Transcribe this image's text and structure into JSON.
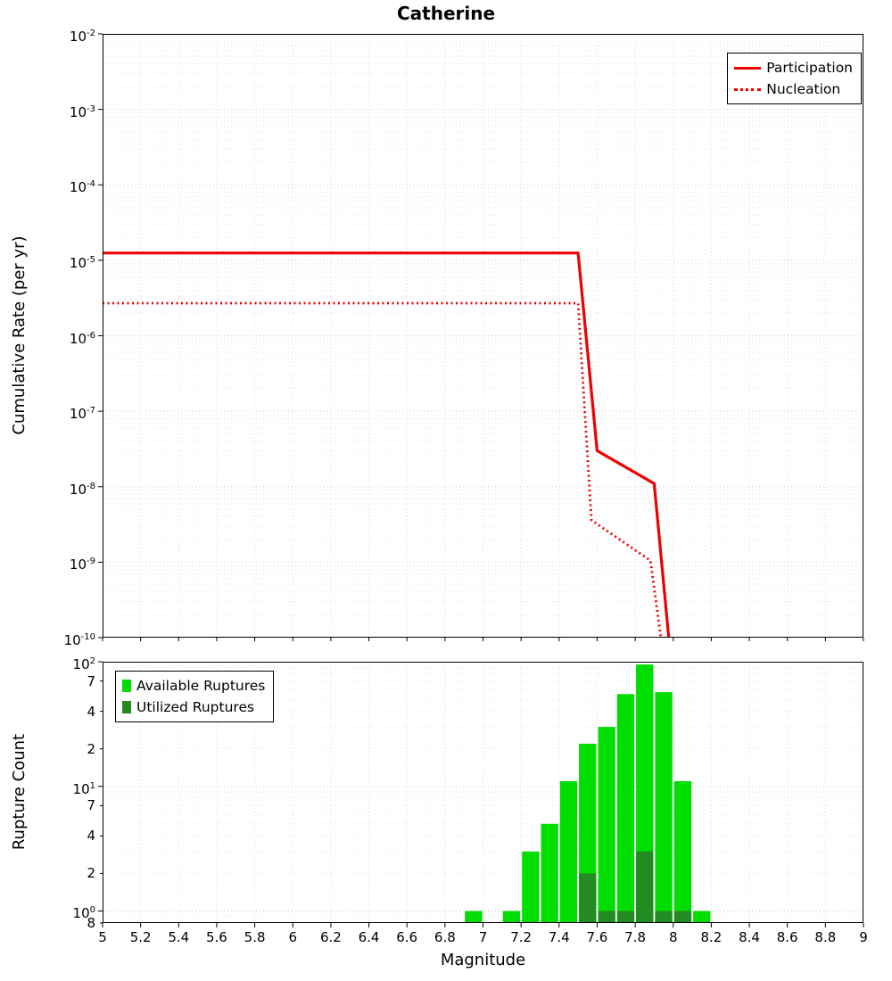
{
  "chart_data": [
    {
      "type": "line",
      "title": "Catherine",
      "ylabel": "Cumulative Rate (per yr)",
      "xlabel": "",
      "xlim": [
        5,
        9
      ],
      "ylim": [
        1e-10,
        0.01
      ],
      "y_scale": "log",
      "grid": true,
      "legend_position": "top-right",
      "y_ticks": [
        {
          "v": 0.01,
          "label": "10^-2",
          "major": true
        },
        {
          "v": 0.001,
          "label": "10^-3",
          "major": true
        },
        {
          "v": 0.0001,
          "label": "10^-4",
          "major": true
        },
        {
          "v": 1e-05,
          "label": "10^-5",
          "major": true
        },
        {
          "v": 1e-06,
          "label": "10^-6",
          "major": true
        },
        {
          "v": 1e-07,
          "label": "10^-7",
          "major": true
        },
        {
          "v": 1e-08,
          "label": "10^-8",
          "major": true
        },
        {
          "v": 1e-09,
          "label": "10^-9",
          "major": true
        },
        {
          "v": 1e-10,
          "label": "10^-10",
          "major": true
        }
      ],
      "series": [
        {
          "name": "Participation",
          "color": "#ee0000",
          "line_style": "solid",
          "line_width": 3.2,
          "x": [
            5.0,
            7.5,
            7.6,
            7.9,
            7.98
          ],
          "y": [
            1.25e-05,
            1.25e-05,
            3e-08,
            1.1e-08,
            8e-11
          ]
        },
        {
          "name": "Nucleation",
          "color": "#ee0000",
          "line_style": "dotted",
          "line_width": 2.8,
          "x": [
            5.0,
            7.5,
            7.57,
            7.88,
            7.94
          ],
          "y": [
            2.7e-06,
            2.7e-06,
            3.6e-09,
            1.05e-09,
            8e-11
          ]
        }
      ]
    },
    {
      "type": "bar",
      "title": "",
      "ylabel": "Rupture Count",
      "xlabel": "Magnitude",
      "xlim": [
        5,
        9
      ],
      "ylim": [
        0.8,
        100
      ],
      "y_scale": "log",
      "grid": true,
      "bar_width": 0.1,
      "legend_position": "top-left",
      "x_ticks": [
        {
          "v": 5,
          "label": "5"
        },
        {
          "v": 5.2,
          "label": "5.2"
        },
        {
          "v": 5.4,
          "label": "5.4"
        },
        {
          "v": 5.6,
          "label": "5.6"
        },
        {
          "v": 5.8,
          "label": "5.8"
        },
        {
          "v": 6,
          "label": "6"
        },
        {
          "v": 6.2,
          "label": "6.2"
        },
        {
          "v": 6.4,
          "label": "6.4"
        },
        {
          "v": 6.6,
          "label": "6.6"
        },
        {
          "v": 6.8,
          "label": "6.8"
        },
        {
          "v": 7,
          "label": "7"
        },
        {
          "v": 7.2,
          "label": "7.2"
        },
        {
          "v": 7.4,
          "label": "7.4"
        },
        {
          "v": 7.6,
          "label": "7.6"
        },
        {
          "v": 7.8,
          "label": "7.8"
        },
        {
          "v": 8,
          "label": "8"
        },
        {
          "v": 8.2,
          "label": "8.2"
        },
        {
          "v": 8.4,
          "label": "8.4"
        },
        {
          "v": 8.6,
          "label": "8.6"
        },
        {
          "v": 8.8,
          "label": "8.8"
        },
        {
          "v": 9,
          "label": "9"
        }
      ],
      "y_ticks": [
        {
          "v": 100,
          "label": "10^2",
          "major": true
        },
        {
          "v": 70,
          "label": "7",
          "major": false
        },
        {
          "v": 40,
          "label": "4",
          "major": false
        },
        {
          "v": 20,
          "label": "2",
          "major": false
        },
        {
          "v": 10,
          "label": "10^1",
          "major": true
        },
        {
          "v": 7,
          "label": "7",
          "major": false
        },
        {
          "v": 4,
          "label": "4",
          "major": false
        },
        {
          "v": 2,
          "label": "2",
          "major": false
        },
        {
          "v": 1,
          "label": "10^0",
          "major": true
        },
        {
          "v": 0.8,
          "label": "8",
          "major": false
        }
      ],
      "series": [
        {
          "name": "Available Ruptures",
          "color": "#00dd00",
          "x": [
            6.95,
            7.15,
            7.25,
            7.35,
            7.45,
            7.55,
            7.65,
            7.75,
            7.85,
            7.95,
            8.05,
            8.15
          ],
          "values": [
            1,
            1,
            3,
            5,
            11,
            22,
            30,
            55,
            95,
            57,
            11,
            1
          ]
        },
        {
          "name": "Utilized Ruptures",
          "color": "#228b22",
          "x": [
            7.55,
            7.65,
            7.75,
            7.85,
            7.95,
            8.05
          ],
          "values": [
            2,
            1,
            1,
            3,
            1,
            1
          ]
        }
      ]
    }
  ]
}
